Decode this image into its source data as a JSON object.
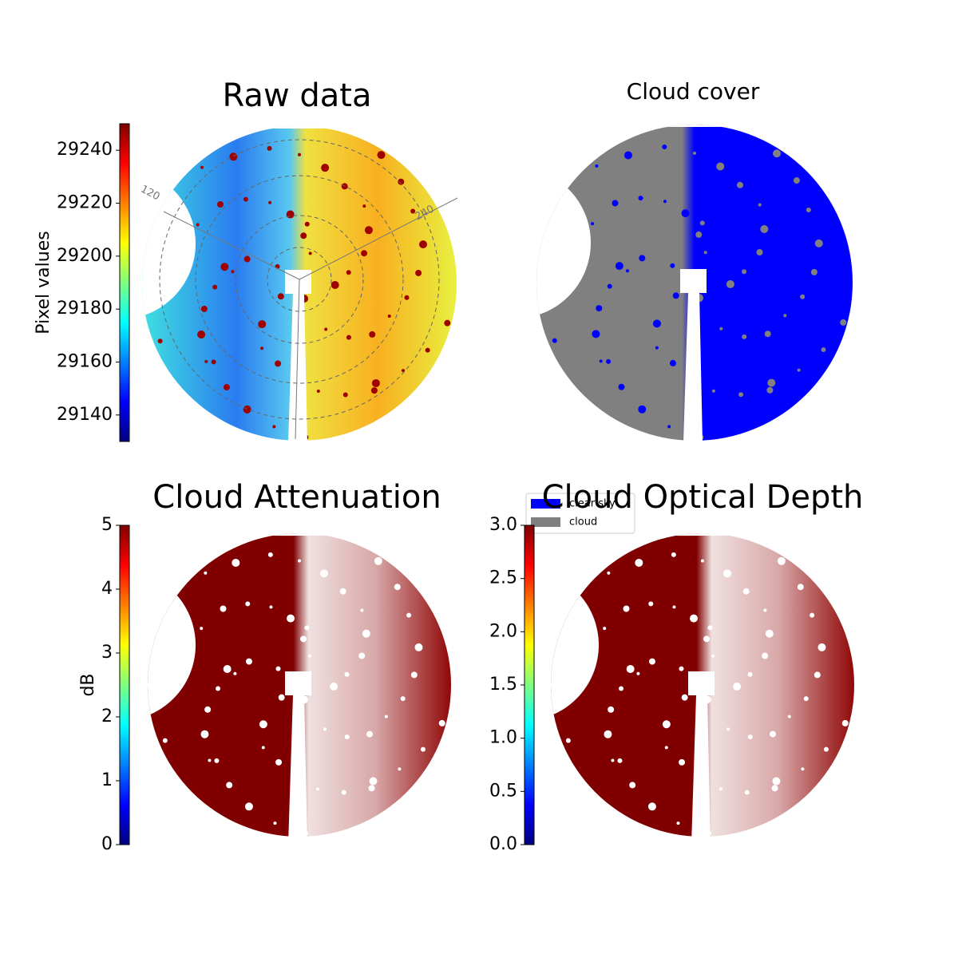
{
  "chart_data": [
    {
      "type": "image",
      "title": "Raw data",
      "colormap": "jet",
      "colorbar_label": "Pixel values",
      "clim": [
        29130,
        29250
      ],
      "cticks": [
        29140,
        29160,
        29180,
        29200,
        29220,
        29240
      ],
      "annotations": [
        "120",
        "240"
      ]
    },
    {
      "type": "image",
      "title": "Cloud cover",
      "series": [
        {
          "name": "clear sky",
          "color": "#0000ff"
        },
        {
          "name": "cloud",
          "color": "#808080"
        }
      ]
    },
    {
      "type": "image",
      "title": "Cloud Attenuation",
      "colormap": "jet",
      "colorbar_label": "dB",
      "clim": [
        0,
        5
      ],
      "cticks": [
        0,
        1,
        2,
        3,
        4,
        5
      ]
    },
    {
      "type": "image",
      "title": "Cloud Optical Depth",
      "colormap": "jet",
      "clim": [
        0,
        3
      ],
      "cticks": [
        {
          "value": 0,
          "label": "0.0"
        },
        {
          "value": 0.5,
          "label": "0.5"
        },
        {
          "value": 1,
          "label": "1.0"
        },
        {
          "value": 1.5,
          "label": "1.5"
        },
        {
          "value": 2,
          "label": "2.0"
        },
        {
          "value": 2.5,
          "label": "2.5"
        },
        {
          "value": 3,
          "label": "3.0"
        }
      ]
    }
  ]
}
